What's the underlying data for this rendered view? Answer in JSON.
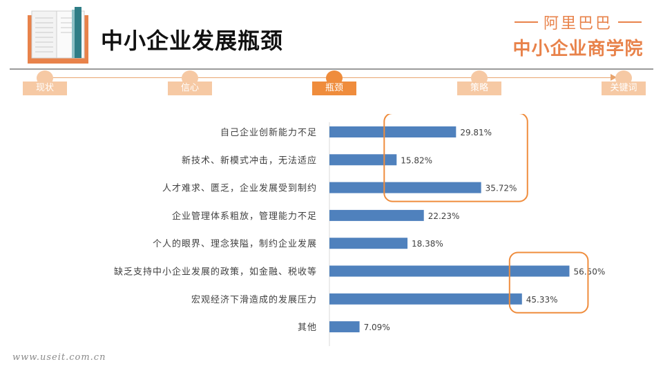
{
  "header": {
    "title": "中小企业发展瓶颈",
    "brand_top": "阿里巴巴",
    "brand_bottom": "中小企业商学院"
  },
  "timeline": {
    "steps": [
      {
        "label": "现状",
        "active": false
      },
      {
        "label": "信心",
        "active": false
      },
      {
        "label": "瓶颈",
        "active": true
      },
      {
        "label": "策略",
        "active": false
      },
      {
        "label": "关键词",
        "active": false
      }
    ]
  },
  "colors": {
    "bar": "#4f81bd",
    "accent": "#ef8c3c",
    "timeline_inactive": "#f6c9a4"
  },
  "chart_data": {
    "type": "bar",
    "orientation": "horizontal",
    "categories": [
      "自己企业创新能力不足",
      "新技术、新模式冲击，无法适应",
      "人才难求、匮乏，企业发展受到制约",
      "企业管理体系粗放，管理能力不足",
      "个人的眼界、理念狭隘，制约企业发展",
      "缺乏支持中小企业发展的政策，如金融、税收等",
      "宏观经济下滑造成的发展压力",
      "其他"
    ],
    "values": [
      29.81,
      15.82,
      35.72,
      22.23,
      18.38,
      56.5,
      45.33,
      7.09
    ],
    "data_labels": [
      "29.81%",
      "15.82%",
      "35.72%",
      "22.23%",
      "18.38%",
      "56.50%",
      "45.33%",
      "7.09%"
    ],
    "xlim": [
      0,
      80
    ],
    "grid": false,
    "legend": "none",
    "highlights": [
      [
        0,
        2
      ],
      [
        5,
        6
      ]
    ]
  },
  "watermark": "www.useit.com.cn"
}
